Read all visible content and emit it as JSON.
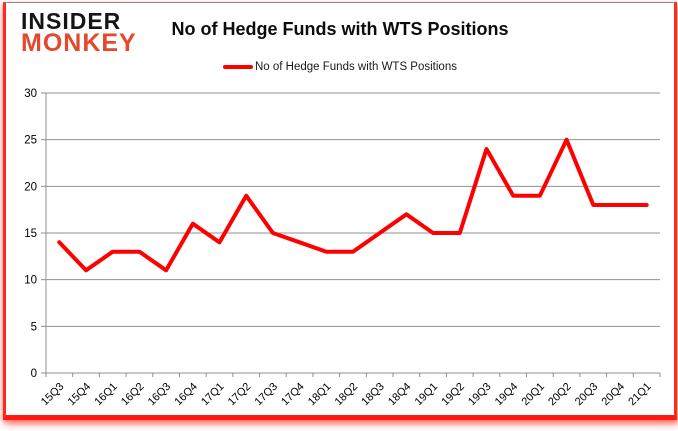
{
  "frame": {
    "accent_color": "#ff1a0e",
    "top_border_color": "#8c8c8c",
    "background": "#ffffff"
  },
  "logo": {
    "line1": "INSIDER",
    "line2": "MONKEY",
    "line1_color": "#151515",
    "line2_color": "#e2492f"
  },
  "header": {
    "title": "No of Hedge Funds with WTS Positions"
  },
  "legend": {
    "label": "No of Hedge Funds with WTS Positions",
    "marker_color": "#ff0000"
  },
  "chart_data": {
    "type": "line",
    "title": "No of Hedge Funds with WTS Positions",
    "categories": [
      "15Q3",
      "15Q4",
      "16Q1",
      "16Q2",
      "16Q3",
      "16Q4",
      "17Q1",
      "17Q2",
      "17Q3",
      "17Q4",
      "18Q1",
      "18Q2",
      "18Q3",
      "18Q4",
      "19Q1",
      "19Q2",
      "19Q3",
      "19Q4",
      "20Q1",
      "20Q2",
      "20Q3",
      "20Q4",
      "21Q1"
    ],
    "series": [
      {
        "name": "No of Hedge Funds with WTS Positions",
        "color": "#ff0000",
        "values": [
          14,
          11,
          13,
          13,
          11,
          16,
          14,
          19,
          15,
          14,
          13,
          13,
          15,
          17,
          15,
          15,
          24,
          19,
          19,
          25,
          18,
          18,
          18
        ]
      }
    ],
    "xlabel": "",
    "ylabel": "",
    "ylim": [
      0,
      30
    ],
    "yticks": [
      0,
      5,
      10,
      15,
      20,
      25,
      30
    ],
    "grid": true,
    "gridline_color": "#909090",
    "axis_color": "#909090",
    "tick_label_color": "#000000",
    "legend_position": "top",
    "x_tick_label_rotation_deg": -45
  }
}
